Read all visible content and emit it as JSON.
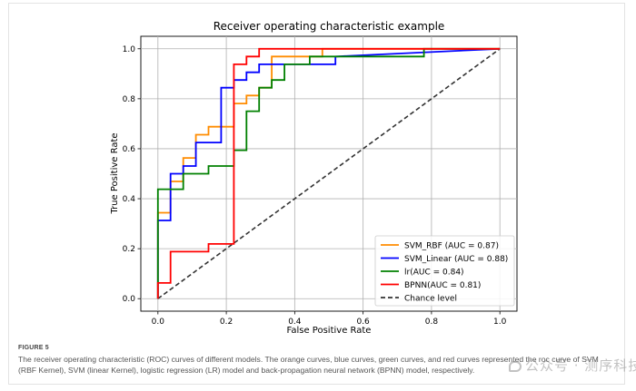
{
  "chart_data": {
    "type": "line",
    "title": "Receiver operating characteristic example",
    "xlabel": "False Positive Rate",
    "ylabel": "True Positive Rate",
    "xlim": [
      -0.05,
      1.05
    ],
    "ylim": [
      -0.05,
      1.05
    ],
    "xticks": [
      "0.0",
      "0.2",
      "0.4",
      "0.6",
      "0.8",
      "1.0"
    ],
    "yticks": [
      "0.0",
      "0.2",
      "0.4",
      "0.6",
      "0.8",
      "1.0"
    ],
    "grid": true,
    "legend_position": "lower-right",
    "series": [
      {
        "name": "SVM_RBF (AUC = 0.87)",
        "color": "#ff8c00",
        "style": "solid",
        "x": [
          0,
          0,
          0.037,
          0.037,
          0.074,
          0.074,
          0.111,
          0.111,
          0.148,
          0.148,
          0.222,
          0.222,
          0.259,
          0.259,
          0.296,
          0.296,
          0.333,
          0.333,
          0.481,
          0.481,
          1.0
        ],
        "y": [
          0,
          0.344,
          0.344,
          0.469,
          0.469,
          0.563,
          0.563,
          0.656,
          0.656,
          0.688,
          0.688,
          0.781,
          0.781,
          0.813,
          0.813,
          0.844,
          0.844,
          0.969,
          0.969,
          1.0,
          1.0
        ]
      },
      {
        "name": "SVM_Linear (AUC = 0.88)",
        "color": "#0000ff",
        "style": "solid",
        "x": [
          0,
          0,
          0.037,
          0.037,
          0.074,
          0.074,
          0.111,
          0.111,
          0.185,
          0.185,
          0.204,
          0.204,
          0.222,
          0.222,
          0.259,
          0.259,
          0.296,
          0.296,
          0.519,
          0.519,
          1.0
        ],
        "y": [
          0,
          0.313,
          0.313,
          0.5,
          0.5,
          0.531,
          0.531,
          0.625,
          0.625,
          0.844,
          0.844,
          0.844,
          0.844,
          0.875,
          0.875,
          0.906,
          0.906,
          0.938,
          0.938,
          0.969,
          1.0
        ]
      },
      {
        "name": "lr(AUC = 0.84)",
        "color": "#008000",
        "style": "solid",
        "x": [
          0,
          0,
          0.074,
          0.074,
          0.148,
          0.148,
          0.222,
          0.222,
          0.259,
          0.259,
          0.296,
          0.296,
          0.333,
          0.333,
          0.37,
          0.37,
          0.444,
          0.444,
          0.778,
          0.778,
          1.0
        ],
        "y": [
          0,
          0.438,
          0.438,
          0.5,
          0.5,
          0.531,
          0.531,
          0.594,
          0.594,
          0.75,
          0.75,
          0.844,
          0.844,
          0.875,
          0.875,
          0.938,
          0.938,
          0.969,
          0.969,
          1.0,
          1.0
        ]
      },
      {
        "name": "BPNN(AUC = 0.81)",
        "color": "#ff0000",
        "style": "solid",
        "x": [
          0,
          0,
          0.037,
          0.037,
          0.148,
          0.148,
          0.222,
          0.222,
          0.259,
          0.259,
          0.296,
          0.296,
          1.0
        ],
        "y": [
          0,
          0.063,
          0.063,
          0.188,
          0.188,
          0.219,
          0.219,
          0.938,
          0.938,
          0.969,
          0.969,
          1.0,
          1.0
        ]
      },
      {
        "name": "Chance level",
        "color": "#333333",
        "style": "dashed",
        "x": [
          0,
          1
        ],
        "y": [
          0,
          1
        ]
      }
    ]
  },
  "caption": {
    "label": "FIGURE 5",
    "text": "The receiver operating characteristic (ROC) curves of different models. The orange curves, blue curves, green curves, and red curves represented the roc curve of SVM (RBF Kernel), SVM (linear Kernel), logistic regression (LR) model and back-propagation neural network (BPNN) model, respectively."
  },
  "watermark": {
    "text": "公众号 · 测序科技实验室"
  }
}
